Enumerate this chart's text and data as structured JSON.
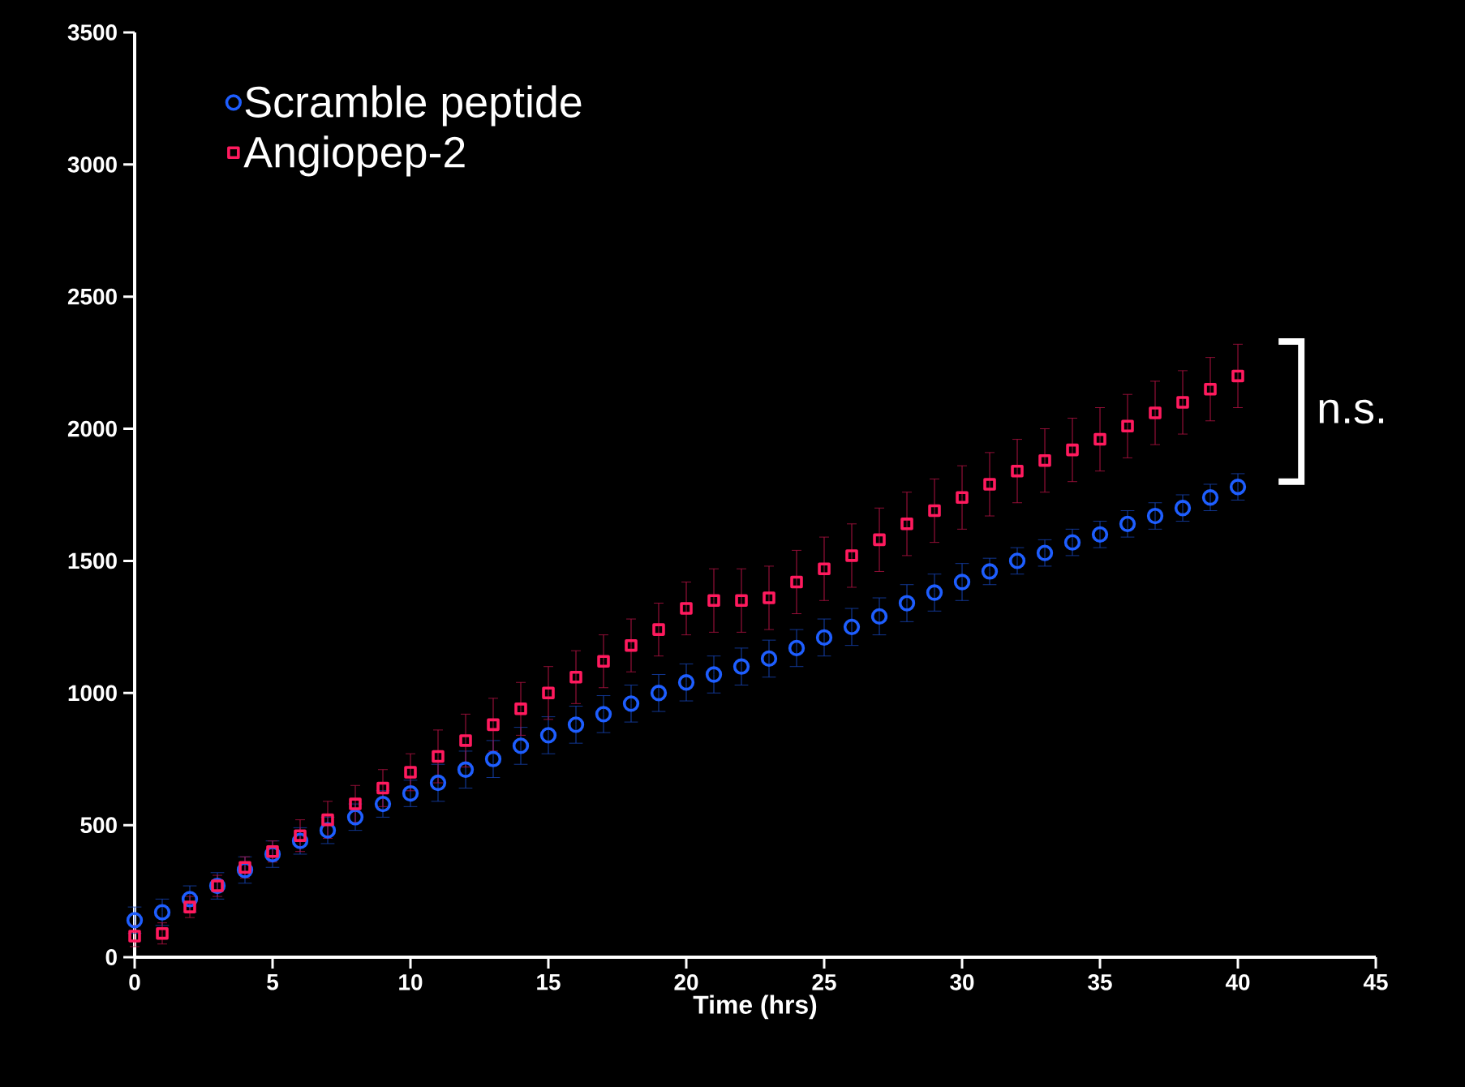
{
  "chart_data": {
    "type": "scatter",
    "xlabel": "Time (hrs)",
    "xlim": [
      0,
      45
    ],
    "ylim": [
      0,
      3500
    ],
    "xticks": [
      0,
      5,
      10,
      15,
      20,
      25,
      30,
      35,
      40,
      45
    ],
    "yticks": [
      0,
      500,
      1000,
      1500,
      2000,
      2500,
      3000,
      3500
    ],
    "legend": "top left",
    "grid": false,
    "x": [
      0,
      1,
      2,
      3,
      4,
      5,
      6,
      7,
      8,
      9,
      10,
      11,
      12,
      13,
      14,
      15,
      16,
      17,
      18,
      19,
      20,
      21,
      22,
      23,
      24,
      25,
      26,
      27,
      28,
      29,
      30,
      31,
      32,
      33,
      34,
      35,
      36,
      37,
      38,
      39,
      40
    ],
    "series": [
      {
        "name": "Scramble peptide",
        "color": "#1e5eff",
        "marker": "circle",
        "values": [
          140,
          170,
          220,
          270,
          330,
          390,
          440,
          480,
          530,
          580,
          620,
          660,
          710,
          750,
          800,
          840,
          880,
          920,
          960,
          1000,
          1040,
          1070,
          1100,
          1130,
          1170,
          1210,
          1250,
          1290,
          1340,
          1380,
          1420,
          1460,
          1500,
          1530,
          1570,
          1600,
          1640,
          1670,
          1700,
          1740,
          1780
        ],
        "errors": [
          50,
          50,
          50,
          50,
          50,
          50,
          50,
          50,
          50,
          50,
          50,
          70,
          70,
          70,
          70,
          70,
          70,
          70,
          70,
          70,
          70,
          70,
          70,
          70,
          70,
          70,
          70,
          70,
          70,
          70,
          70,
          50,
          50,
          50,
          50,
          50,
          50,
          50,
          50,
          50,
          50
        ]
      },
      {
        "name": "Angiopep-2",
        "color": "#ff1a5e",
        "marker": "square",
        "values": [
          80,
          90,
          190,
          270,
          340,
          400,
          460,
          520,
          580,
          640,
          700,
          760,
          820,
          880,
          940,
          1000,
          1060,
          1120,
          1180,
          1240,
          1320,
          1350,
          1350,
          1360,
          1420,
          1470,
          1520,
          1580,
          1640,
          1690,
          1740,
          1790,
          1840,
          1880,
          1920,
          1960,
          2010,
          2060,
          2100,
          2150,
          2200
        ],
        "errors": [
          40,
          40,
          40,
          40,
          40,
          40,
          60,
          70,
          70,
          70,
          70,
          100,
          100,
          100,
          100,
          100,
          100,
          100,
          100,
          100,
          100,
          120,
          120,
          120,
          120,
          120,
          120,
          120,
          120,
          120,
          120,
          120,
          120,
          120,
          120,
          120,
          120,
          120,
          120,
          120,
          120
        ]
      }
    ],
    "annotations": [
      "n.s."
    ]
  }
}
